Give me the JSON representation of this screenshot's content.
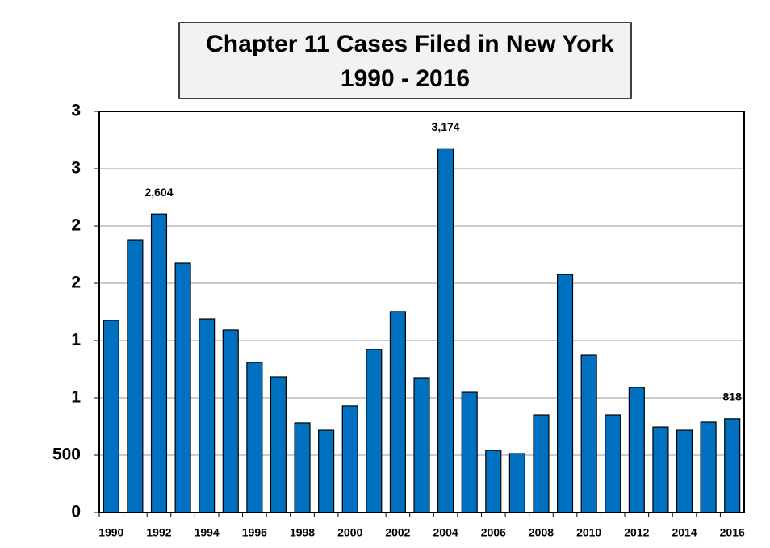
{
  "chart_data": {
    "type": "bar",
    "title": "Chapter 11 Cases Filed in New York",
    "subtitle": "1990 - 2016",
    "categories": [
      "1990",
      null,
      "1992",
      null,
      "1994",
      null,
      "1996",
      null,
      "1998",
      null,
      "2000",
      null,
      "2002",
      null,
      "2004",
      null,
      "2006",
      null,
      "2008",
      null,
      "2010",
      null,
      "2012",
      null,
      "2014",
      null,
      "2016"
    ],
    "values": [
      1676,
      2380,
      2604,
      2176,
      1690,
      1592,
      1310,
      1183,
      782,
      718,
      930,
      1423,
      1754,
      1176,
      3174,
      1049,
      542,
      514,
      852,
      2077,
      1373,
      852,
      1092,
      746,
      718,
      789,
      818
    ],
    "value_labels": [
      null,
      null,
      "2,604",
      null,
      null,
      null,
      null,
      null,
      null,
      null,
      null,
      null,
      null,
      null,
      "3,174",
      null,
      null,
      null,
      null,
      null,
      null,
      null,
      null,
      null,
      null,
      null,
      "818"
    ],
    "color": "#0070c0",
    "ylim": [
      0,
      3500
    ],
    "yticks": [
      0,
      500,
      {
        "value": 1000,
        "label": "1"
      },
      {
        "value": 1500,
        "label": "1"
      },
      {
        "value": 2000,
        "label": "2"
      },
      {
        "value": 2500,
        "label": "2"
      },
      {
        "value": 3000,
        "label": "3"
      },
      {
        "value": 3500,
        "label": "3"
      }
    ],
    "grid": true
  }
}
